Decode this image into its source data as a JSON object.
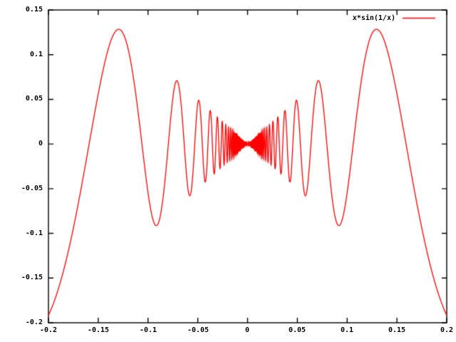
{
  "chart_data": {
    "type": "line",
    "title": "",
    "legend_label": "x*sin(1/x)",
    "legend_position": "top-right",
    "expr_js": "x*Math.sin(1/x)",
    "x_range": [
      -0.2,
      0.2
    ],
    "y_range": [
      -0.2,
      0.15
    ],
    "x_ticks": [
      -0.2,
      -0.15,
      -0.1,
      -0.05,
      0,
      0.05,
      0.1,
      0.15,
      0.2
    ],
    "y_ticks": [
      -0.2,
      -0.15,
      -0.1,
      -0.05,
      0,
      0.05,
      0.1,
      0.15
    ],
    "x_tick_labels": [
      "-0.2",
      "-0.15",
      "-0.1",
      "-0.05",
      "0",
      "0.05",
      "0.1",
      "0.15",
      "0.2"
    ],
    "y_tick_labels_top_to_bottom": [
      "0.15",
      "0.1",
      "0.05",
      "0",
      "-0.05",
      "-0.1",
      "-0.15",
      "-0.2"
    ],
    "samples": 6000,
    "grid": false,
    "line_color": "#ff0000",
    "border_color": "#000000",
    "background": "#ffffff"
  }
}
